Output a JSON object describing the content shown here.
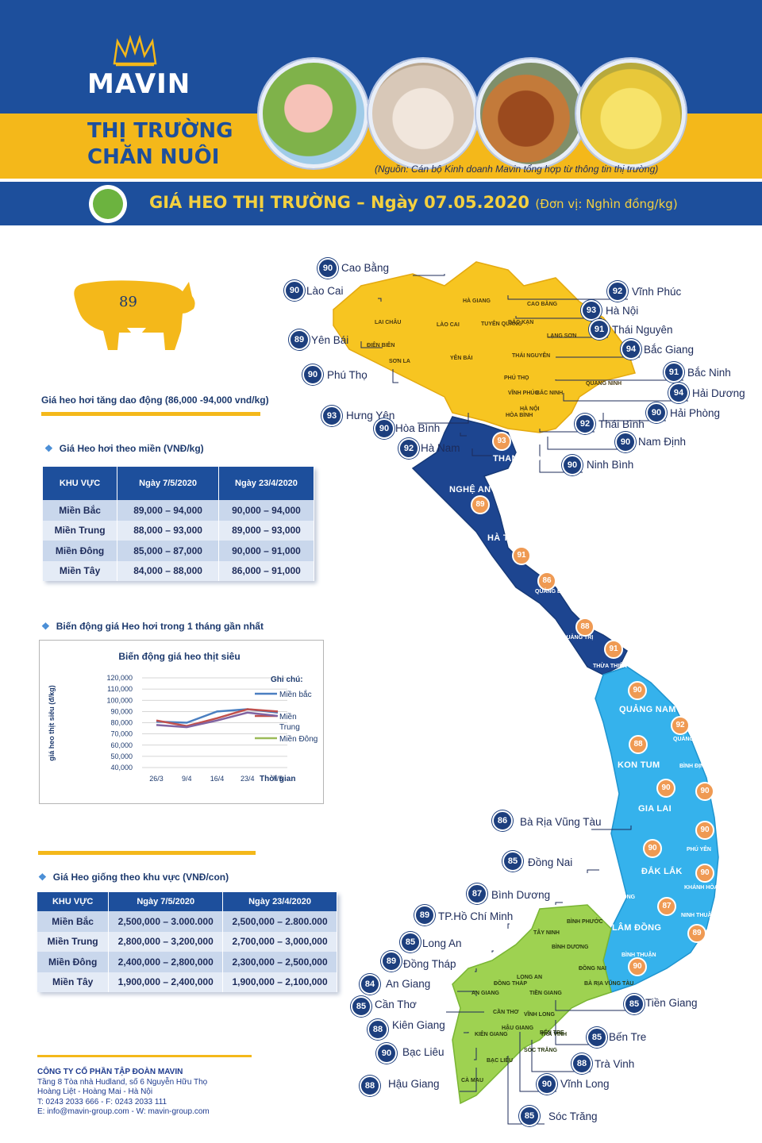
{
  "brand": {
    "logo": "MAVIN",
    "title_line1": "THỊ TRƯỜNG",
    "title_line2": "CHĂN NUÔI"
  },
  "source_note": "(Nguồn: Cán bộ Kinh doanh Mavin tổng hợp từ thông tin thị trường)",
  "banner": {
    "title": "GIÁ HEO THỊ TRƯỜNG – Ngày 07.05.2020",
    "unit": "(Đơn vị: Nghìn đồng/kg)"
  },
  "pig_price": "89",
  "pig_note": "Giá heo hơi tăng dao động (86,000 -94,000 vnd/kg)",
  "live_price": {
    "heading": "Giá Heo hơi theo miền (VNĐ/kg)",
    "headers": [
      "KHU VỰC",
      "Ngày 7/5/2020",
      "Ngày 23/4/2020"
    ],
    "rows": [
      [
        "Miền Bắc",
        "89,000 – 94,000",
        "90,000 – 94,000"
      ],
      [
        "Miền Trung",
        "88,000 – 93,000",
        "89,000 – 93,000"
      ],
      [
        "Miền Đông",
        "85,000 – 87,000",
        "90,000 – 91,000"
      ],
      [
        "Miền Tây",
        "84,000 – 88,000",
        "86,000 – 91,000"
      ]
    ]
  },
  "trend_heading": "Biến động giá Heo hơi trong 1 tháng gần nhất",
  "chart_data": {
    "type": "line",
    "title": "Biến động giá heo thịt siêu",
    "ylabel": "giá heo thịt siêu (đ/kg)",
    "xlabel": "Thời gian",
    "legend_title": "Ghi chú:",
    "categories": [
      "26/3",
      "9/4",
      "16/4",
      "23/4",
      "7/5"
    ],
    "y_ticks": [
      "120,000",
      "110,000",
      "100,000",
      "90,000",
      "80,000",
      "70,000",
      "60,000",
      "50,000",
      "40,000"
    ],
    "ylim": [
      40000,
      120000
    ],
    "series": [
      {
        "name": "Miền bắc",
        "color": "#4a7fc1",
        "values": [
          81000,
          80000,
          90000,
          92000,
          89000
        ]
      },
      {
        "name": "Miền Trung",
        "color": "#c0504d",
        "values": [
          82000,
          77000,
          84000,
          92000,
          90000
        ]
      },
      {
        "name": "Miền Đông",
        "color": "#9bbb59",
        "values": [
          null,
          null,
          null,
          null,
          null
        ]
      },
      {
        "name": "",
        "color": "#8064a2",
        "values": [
          78000,
          76000,
          82000,
          89000,
          86000
        ]
      }
    ],
    "grid": true,
    "legend": "right"
  },
  "breed_price": {
    "heading": "Giá Heo giống theo khu vực (VNĐ/con)",
    "headers": [
      "KHU VỰC",
      "Ngày 7/5/2020",
      "Ngày 23/4/2020"
    ],
    "rows": [
      [
        "Miền Bắc",
        "2,500,000 – 3.000.000",
        "2,500,000 – 2.800.000"
      ],
      [
        "Miền Trung",
        "2,800,000 – 3,200,000",
        "2,700,000 – 3,000,000"
      ],
      [
        "Miền Đông",
        "2,400,000 – 2,800,000",
        "2,300,000 – 2,500,000"
      ],
      [
        "Miền Tây",
        "1,900,000 – 2,400,000",
        "1,900,000 – 2,100,000"
      ]
    ]
  },
  "company": {
    "name": "CÔNG TY CỔ PHẦN TẬP ĐOÀN MAVIN",
    "line1": "Tầng 8 Tòa nhà Hudland, số 6 Nguyễn Hữu Thọ",
    "line2": "Hoàng Liệt - Hoàng Mai - Hà Nội",
    "line3": "T: 0243 2033 666 - F: 0243 2033 111",
    "line4": "E: info@mavin-group.com - W: mavin-group.com"
  },
  "map_pins": [
    {
      "price": "90",
      "name": "Cao Bằng"
    },
    {
      "price": "90",
      "name": "Lào Cai"
    },
    {
      "price": "89",
      "name": "Yên Bái"
    },
    {
      "price": "90",
      "name": "Phú Thọ"
    },
    {
      "price": "93",
      "name": "Hưng Yên"
    },
    {
      "price": "90",
      "name": "Hòa Bình"
    },
    {
      "price": "92",
      "name": "Hà Nam"
    },
    {
      "price": "92",
      "name": "Vĩnh Phúc"
    },
    {
      "price": "93",
      "name": "Hà Nội"
    },
    {
      "price": "91",
      "name": "Thái Nguyên"
    },
    {
      "price": "94",
      "name": "Bắc Giang"
    },
    {
      "price": "91",
      "name": "Bắc Ninh"
    },
    {
      "price": "94",
      "name": "Hải Dương"
    },
    {
      "price": "90",
      "name": "Hải Phòng"
    },
    {
      "price": "92",
      "name": "Thái Bình"
    },
    {
      "price": "90",
      "name": "Nam Định"
    },
    {
      "price": "90",
      "name": "Ninh Bình"
    },
    {
      "price": "86",
      "name": "Bà Rịa Vũng Tàu"
    },
    {
      "price": "85",
      "name": "Đồng Nai"
    },
    {
      "price": "87",
      "name": "Bình Dương"
    },
    {
      "price": "89",
      "name": "TP.Hồ Chí Minh"
    },
    {
      "price": "85",
      "name": "Long An"
    },
    {
      "price": "89",
      "name": "Đồng Tháp"
    },
    {
      "price": "84",
      "name": "An Giang"
    },
    {
      "price": "85",
      "name": "Cần Thơ"
    },
    {
      "price": "88",
      "name": "Kiên Giang"
    },
    {
      "price": "90",
      "name": "Bạc Liêu"
    },
    {
      "price": "88",
      "name": "Hậu Giang"
    },
    {
      "price": "85",
      "name": "Tiền Giang"
    },
    {
      "price": "85",
      "name": "Bến Tre"
    },
    {
      "price": "88",
      "name": "Trà Vinh"
    },
    {
      "price": "90",
      "name": "Vĩnh Long"
    },
    {
      "price": "85",
      "name": "Sóc Trăng"
    }
  ],
  "map_orange_pins": [
    "93",
    "89",
    "91",
    "86",
    "88",
    "91",
    "90",
    "92",
    "88",
    "90",
    "90",
    "90",
    "90",
    "90",
    "87",
    "89",
    "90"
  ],
  "map_labels": [
    "THANH HÓA",
    "NGHỆ AN",
    "HÀ TĨNH",
    "QUẢNG BÌNH",
    "QUẢNG TRỊ",
    "THỪA THIÊN HUẾ",
    "QUẢNG NAM",
    "QUẢNG NGÃI",
    "KON TUM",
    "BÌNH ĐỊNH",
    "GIA LAI",
    "PHÚ YÊN",
    "ĐẮK LẮK",
    "KHÁNH HÒA",
    "ĐẮK NÔNG",
    "LÂM ĐỒNG",
    "NINH THUẬN",
    "BÌNH THUẬN",
    "SƠN LA",
    "LAI CHÂU",
    "ĐIỆN BIÊN",
    "HÀ GIANG",
    "CAO BẰNG",
    "LÀO CAI",
    "TUYÊN QUANG",
    "BẮC KẠN",
    "LẠNG SƠN",
    "YÊN BÁI",
    "THÁI NGUYÊN",
    "PHÚ THỌ",
    "VĨNH PHÚC",
    "HÀ NỘI",
    "BẮC NINH",
    "QUẢNG NINH",
    "HÒA BÌNH",
    "BÌNH PHƯỚC",
    "TÂY NINH",
    "BÌNH DƯƠNG",
    "ĐỒNG NAI",
    "BÀ RỊA VŨNG TÀU",
    "LONG AN",
    "ĐỒNG THÁP",
    "AN GIANG",
    "TIỀN GIANG",
    "CẦN THƠ",
    "VĨNH LONG",
    "BẾN TRE",
    "HẬU GIANG",
    "TRÀ VINH",
    "KIÊN GIANG",
    "SÓC TRĂNG",
    "BẠC LIÊU",
    "CÀ MAU"
  ]
}
